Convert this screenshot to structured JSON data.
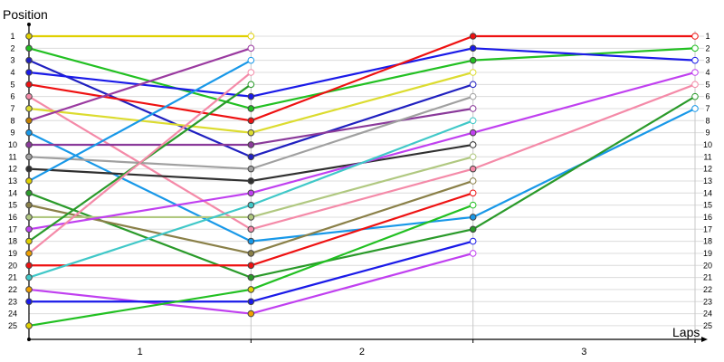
{
  "chart_data": {
    "type": "line",
    "title": "",
    "ylabel": "Position",
    "xlabel": "Laps",
    "x": [
      0,
      1,
      2,
      3
    ],
    "x_tick_labels": [
      "1",
      "2",
      "3"
    ],
    "y_tick_labels": [
      "1",
      "2",
      "3",
      "4",
      "5",
      "6",
      "7",
      "8",
      "9",
      "10",
      "11",
      "12",
      "13",
      "14",
      "15",
      "16",
      "17",
      "18",
      "19",
      "20",
      "21",
      "22",
      "23",
      "24",
      "25"
    ],
    "ylim": [
      1,
      25
    ],
    "y_inverted": true,
    "grid": "horizontal",
    "legend": "none",
    "series": [
      {
        "color": "#e0d000",
        "marker": "#e0d000",
        "values": [
          1,
          1,
          null,
          null
        ]
      },
      {
        "color": "#22c022",
        "marker": "#22c022",
        "values": [
          2,
          7,
          3,
          2
        ]
      },
      {
        "color": "#2020c0",
        "marker": "#2020c0",
        "values": [
          3,
          11,
          5,
          null
        ]
      },
      {
        "color": "#1a1ae8",
        "marker": "#1a1ae8",
        "values": [
          4,
          6,
          2,
          3
        ]
      },
      {
        "color": "#ee1111",
        "marker": "#ee1111",
        "values": [
          5,
          8,
          1,
          1
        ]
      },
      {
        "color": "#f48aa8",
        "marker": "#f48aa8",
        "values": [
          6,
          17,
          12,
          5
        ]
      },
      {
        "color": "#dcdc30",
        "marker": "#dcdc30",
        "values": [
          7,
          9,
          4,
          null
        ]
      },
      {
        "color": "#9a3aa0",
        "marker": "#c08000",
        "values": [
          8,
          2,
          null,
          null
        ]
      },
      {
        "color": "#1898e8",
        "marker": "#1898e8",
        "values": [
          9,
          18,
          16,
          7
        ]
      },
      {
        "color": "#8a3a9a",
        "marker": "#8a3a9a",
        "values": [
          10,
          10,
          7,
          null
        ]
      },
      {
        "color": "#a0a0a0",
        "marker": "#a0a0a0",
        "values": [
          11,
          12,
          6,
          null
        ]
      },
      {
        "color": "#303030",
        "marker": "#303030",
        "values": [
          12,
          13,
          10,
          null
        ]
      },
      {
        "color": "#1898e8",
        "marker": "#e0d000",
        "values": [
          13,
          3,
          null,
          null
        ]
      },
      {
        "color": "#2a9a2a",
        "marker": "#2a9a2a",
        "values": [
          14,
          21,
          17,
          6
        ]
      },
      {
        "color": "#8a8048",
        "marker": "#8a8048",
        "values": [
          15,
          19,
          13,
          null
        ]
      },
      {
        "color": "#b0c880",
        "marker": "#b0c880",
        "values": [
          16,
          16,
          11,
          null
        ]
      },
      {
        "color": "#c040f0",
        "marker": "#c040f0",
        "values": [
          17,
          14,
          9,
          4
        ]
      },
      {
        "color": "#2a9a2a",
        "marker": "#e0d000",
        "values": [
          18,
          5,
          null,
          null
        ]
      },
      {
        "color": "#f48aa8",
        "marker": "#f0a000",
        "values": [
          19,
          4,
          null,
          null
        ]
      },
      {
        "color": "#ee1111",
        "marker": "#ee1111",
        "values": [
          20,
          20,
          14,
          null
        ]
      },
      {
        "color": "#40c8c8",
        "marker": "#40c8c8",
        "values": [
          21,
          15,
          8,
          null
        ]
      },
      {
        "color": "#c040f0",
        "marker": "#f0a000",
        "values": [
          22,
          24,
          19,
          null
        ]
      },
      {
        "color": "#1a1ae8",
        "marker": "#1a1ae8",
        "values": [
          23,
          23,
          18,
          null
        ]
      },
      {
        "color": "#22c022",
        "marker": "#e0d000",
        "values": [
          25,
          22,
          15,
          null
        ]
      }
    ]
  }
}
